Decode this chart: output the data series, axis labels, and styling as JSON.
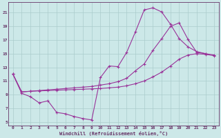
{
  "xlabel": "Windchill (Refroidissement éolien,°C)",
  "bg_color": "#cce8e8",
  "line_color": "#993399",
  "grid_color": "#aacccc",
  "axis_color": "#663366",
  "xlim": [
    -0.5,
    23.5
  ],
  "ylim": [
    4.5,
    22.5
  ],
  "xticks": [
    0,
    1,
    2,
    3,
    4,
    5,
    6,
    7,
    8,
    9,
    10,
    11,
    12,
    13,
    14,
    15,
    16,
    17,
    18,
    19,
    20,
    21,
    22,
    23
  ],
  "yticks": [
    5,
    7,
    9,
    11,
    13,
    15,
    17,
    19,
    21
  ],
  "line1_x": [
    0,
    1,
    2,
    3,
    4,
    5,
    6,
    7,
    8,
    9,
    10,
    11,
    12,
    13,
    14,
    15,
    16,
    17,
    18,
    19,
    20,
    21,
    22
  ],
  "line1_y": [
    12.0,
    9.2,
    8.7,
    7.8,
    8.1,
    6.4,
    6.2,
    5.8,
    5.5,
    5.3,
    11.5,
    13.2,
    13.1,
    15.2,
    18.2,
    21.4,
    21.7,
    21.1,
    19.3,
    17.2,
    16.0,
    15.3,
    15.0
  ],
  "line2_x": [
    0,
    1,
    2,
    3,
    4,
    5,
    6,
    7,
    8,
    9,
    10,
    11,
    12,
    13,
    14,
    15,
    16,
    17,
    18,
    19,
    20,
    21,
    22,
    23
  ],
  "line2_y": [
    12.0,
    9.4,
    9.5,
    9.6,
    9.7,
    9.8,
    9.9,
    10.0,
    10.1,
    10.2,
    10.4,
    10.6,
    10.9,
    11.4,
    12.5,
    13.5,
    15.5,
    17.2,
    19.0,
    19.5,
    17.1,
    15.2,
    15.0,
    14.8
  ],
  "line3_x": [
    0,
    1,
    2,
    3,
    4,
    5,
    6,
    7,
    8,
    9,
    10,
    11,
    12,
    13,
    14,
    15,
    16,
    17,
    18,
    19,
    20,
    21,
    22,
    23
  ],
  "line3_y": [
    12.0,
    9.4,
    9.5,
    9.55,
    9.6,
    9.65,
    9.7,
    9.75,
    9.8,
    9.85,
    9.9,
    10.0,
    10.1,
    10.3,
    10.6,
    11.0,
    11.6,
    12.3,
    13.2,
    14.2,
    14.8,
    15.0,
    14.9,
    14.7
  ]
}
